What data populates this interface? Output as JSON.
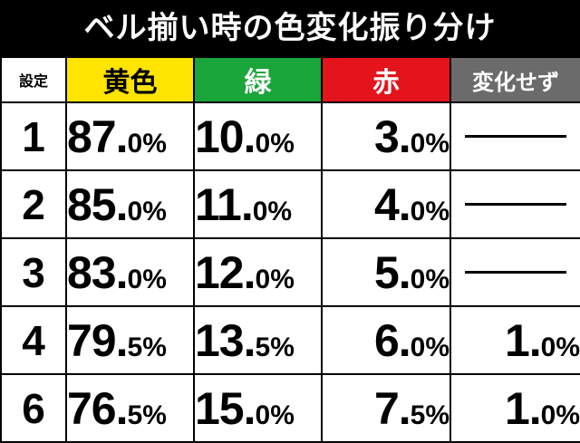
{
  "title": "ベル揃い時の色変化振り分け",
  "headers": {
    "setting": "設定",
    "yellow": "黄色",
    "green": "緑",
    "red": "赤",
    "no_change": "変化せず"
  },
  "colors": {
    "yellow": "#ffe400",
    "green": "#1aa53b",
    "red": "#e3141b",
    "no_change": "#6b6b6b",
    "title_bg": "#000000"
  },
  "rows": [
    {
      "setting": "1",
      "yellow": {
        "int": "87.",
        "dec": "0%"
      },
      "green": {
        "int": "10.",
        "dec": "0%"
      },
      "red": {
        "int": "3.",
        "dec": "0%"
      },
      "no_change": {
        "int": "",
        "dec": "",
        "dash": true
      }
    },
    {
      "setting": "2",
      "yellow": {
        "int": "85.",
        "dec": "0%"
      },
      "green": {
        "int": "11.",
        "dec": "0%"
      },
      "red": {
        "int": "4.",
        "dec": "0%"
      },
      "no_change": {
        "int": "",
        "dec": "",
        "dash": true
      }
    },
    {
      "setting": "3",
      "yellow": {
        "int": "83.",
        "dec": "0%"
      },
      "green": {
        "int": "12.",
        "dec": "0%"
      },
      "red": {
        "int": "5.",
        "dec": "0%"
      },
      "no_change": {
        "int": "",
        "dec": "",
        "dash": true
      }
    },
    {
      "setting": "4",
      "yellow": {
        "int": "79.",
        "dec": "5%"
      },
      "green": {
        "int": "13.",
        "dec": "5%"
      },
      "red": {
        "int": "6.",
        "dec": "0%"
      },
      "no_change": {
        "int": "1.",
        "dec": "0%"
      }
    },
    {
      "setting": "6",
      "yellow": {
        "int": "76.",
        "dec": "5%"
      },
      "green": {
        "int": "15.",
        "dec": "0%"
      },
      "red": {
        "int": "7.",
        "dec": "5%"
      },
      "no_change": {
        "int": "1.",
        "dec": "0%"
      }
    }
  ]
}
